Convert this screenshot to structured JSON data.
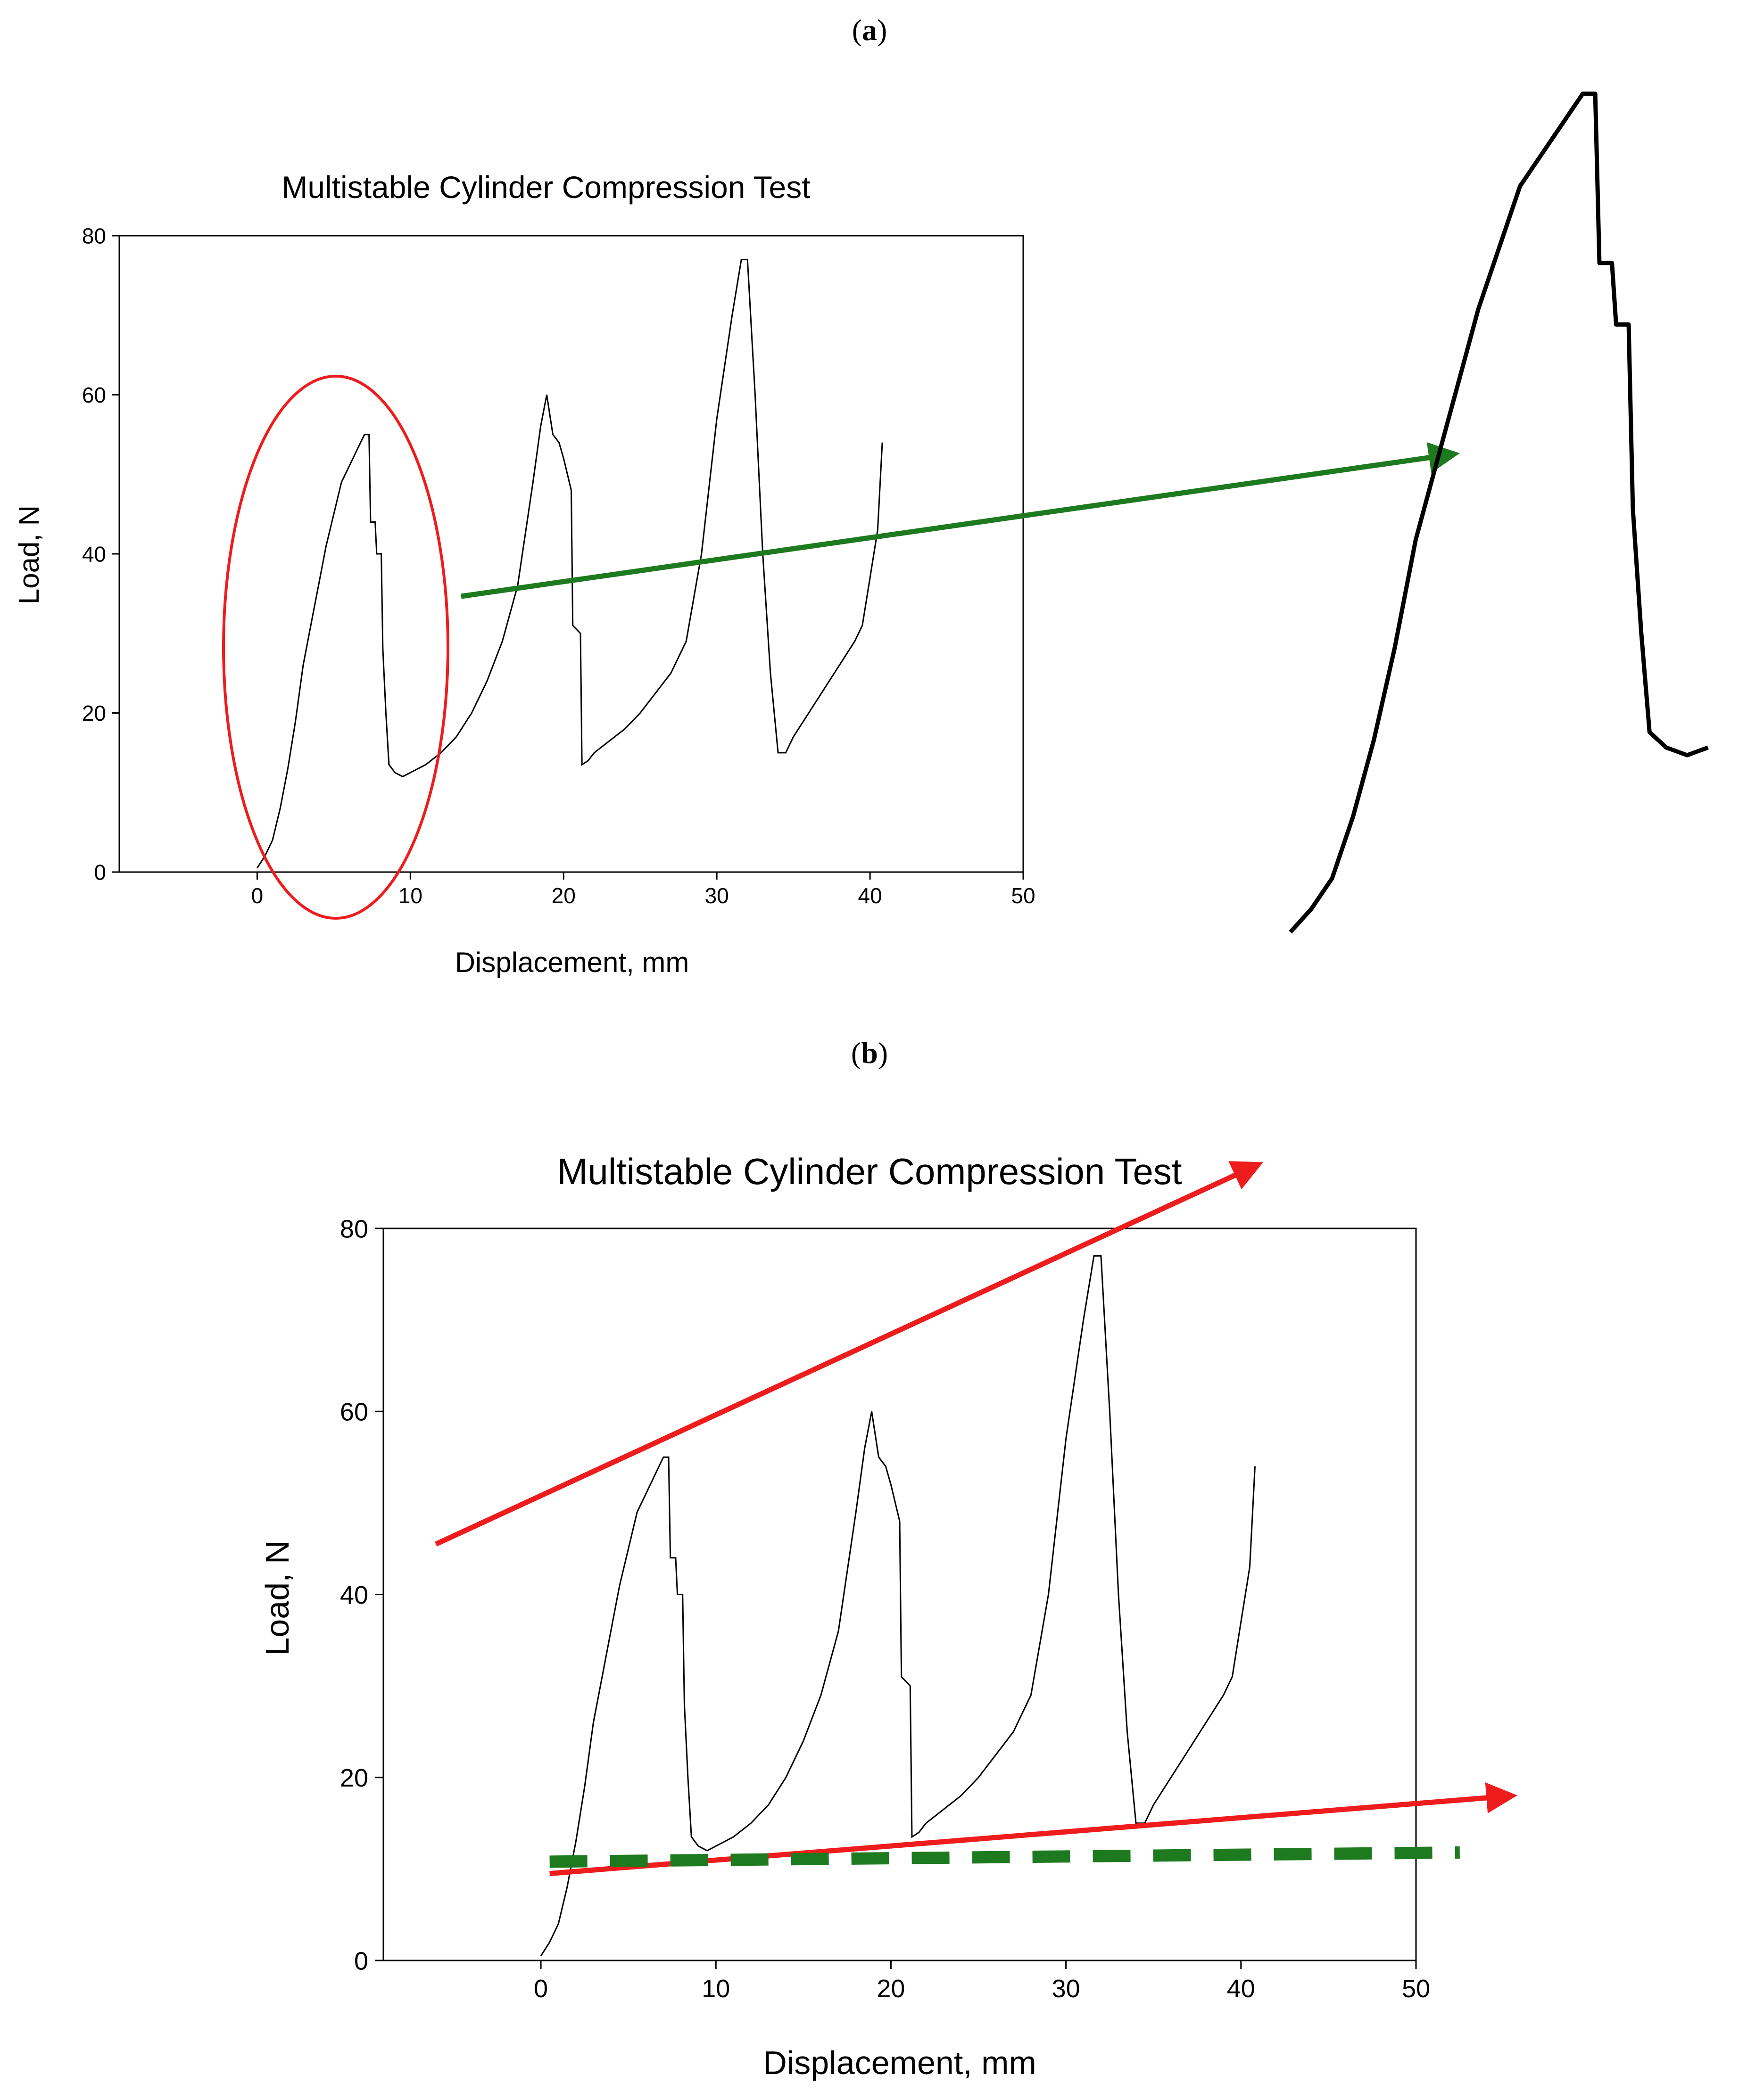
{
  "figure": {
    "panel_a_label": "a",
    "panel_b_label": "b",
    "annotation_colors": {
      "ellipse": "#ee1c1c",
      "green_arrow": "#1e7a1e",
      "trend_arrows": "#ee1c1c",
      "plateau_dash": "#1e7a1e"
    }
  },
  "chart_data": [
    {
      "panel": "a",
      "type": "line",
      "title": "Multistable Cylinder Compression Test",
      "xlabel": "Displacement, mm",
      "ylabel": "Load, N",
      "xlim": [
        -9,
        50
      ],
      "ylim": [
        0,
        80
      ],
      "xticks": [
        0,
        10,
        20,
        30,
        40,
        50
      ],
      "yticks": [
        0,
        20,
        40,
        60,
        80
      ],
      "grid": false,
      "series": [
        {
          "name": "Load",
          "color": "#000000",
          "x": [
            0,
            0.5,
            1,
            1.5,
            2,
            2.5,
            3,
            3.5,
            4,
            4.5,
            5,
            5.5,
            6,
            6.5,
            7,
            7.3,
            7.4,
            7.7,
            7.8,
            8.1,
            8.2,
            8.4,
            8.6,
            9,
            9.5,
            10,
            11,
            12,
            13,
            14,
            15,
            16,
            17,
            18,
            18.5,
            18.9,
            19.3,
            19.7,
            20,
            20.5,
            20.6,
            21.1,
            21.2,
            21.6,
            22,
            23,
            24,
            25,
            26,
            27,
            28,
            29,
            30,
            31,
            31.6,
            32,
            32.5,
            33,
            33.5,
            34,
            34.5,
            35,
            36,
            37,
            38,
            39,
            39.5,
            40,
            40.5,
            40.8
          ],
          "y": [
            0.5,
            2,
            4,
            8,
            13,
            19,
            26,
            31,
            36,
            41,
            45,
            49,
            51,
            53,
            55,
            55,
            44,
            44,
            40,
            40,
            28,
            20,
            13.5,
            12.5,
            12,
            12.5,
            13.5,
            15,
            17,
            20,
            24,
            29,
            36,
            49,
            56,
            60,
            55,
            54,
            52,
            48,
            31,
            30,
            13.5,
            14,
            15,
            16.5,
            18,
            20,
            22.5,
            25,
            29,
            40,
            57,
            70,
            77,
            77,
            60,
            40,
            25,
            15,
            15,
            17,
            20,
            23,
            26,
            29,
            31,
            37,
            43,
            54
          ]
        }
      ],
      "annotations": [
        {
          "type": "ellipse",
          "around": "first peak, displacement 0 to 10 mm"
        },
        {
          "type": "arrow",
          "points_to": "zoomed view of first load peak"
        }
      ]
    },
    {
      "panel": "b",
      "type": "line",
      "title": "Multistable Cylinder Compression Test",
      "xlabel": "Displacement, mm",
      "ylabel": "Load, N",
      "xlim": [
        -9,
        50
      ],
      "ylim": [
        0,
        80
      ],
      "xticks": [
        0,
        10,
        20,
        30,
        40,
        50
      ],
      "yticks": [
        0,
        20,
        40,
        60,
        80
      ],
      "grid": false,
      "series": [
        {
          "name": "Load",
          "color": "#000000",
          "x": [
            0,
            0.5,
            1,
            1.5,
            2,
            2.5,
            3,
            3.5,
            4,
            4.5,
            5,
            5.5,
            6,
            6.5,
            7,
            7.3,
            7.4,
            7.7,
            7.8,
            8.1,
            8.2,
            8.4,
            8.6,
            9,
            9.5,
            10,
            11,
            12,
            13,
            14,
            15,
            16,
            17,
            18,
            18.5,
            18.9,
            19.3,
            19.7,
            20,
            20.5,
            20.6,
            21.1,
            21.2,
            21.6,
            22,
            23,
            24,
            25,
            26,
            27,
            28,
            29,
            30,
            31,
            31.6,
            32,
            32.5,
            33,
            33.5,
            34,
            34.5,
            35,
            36,
            37,
            38,
            39,
            39.5,
            40,
            40.5,
            40.8
          ],
          "y": [
            0.5,
            2,
            4,
            8,
            13,
            19,
            26,
            31,
            36,
            41,
            45,
            49,
            51,
            53,
            55,
            55,
            44,
            44,
            40,
            40,
            28,
            20,
            13.5,
            12.5,
            12,
            12.5,
            13.5,
            15,
            17,
            20,
            24,
            29,
            36,
            49,
            56,
            60,
            55,
            54,
            52,
            48,
            31,
            30,
            13.5,
            14,
            15,
            16.5,
            18,
            20,
            22.5,
            25,
            29,
            40,
            57,
            70,
            77,
            77,
            60,
            40,
            25,
            15,
            15,
            17,
            20,
            23,
            26,
            29,
            31,
            37,
            43,
            54
          ]
        }
      ],
      "annotations": [
        {
          "type": "trend-arrow",
          "from": [
            -6,
            45.5
          ],
          "to": [
            41,
            87
          ],
          "meaning": "increasing peak load"
        },
        {
          "type": "trend-arrow",
          "from": [
            0.5,
            9.5
          ],
          "to": [
            55.5,
            18
          ],
          "meaning": "increasing valley load"
        },
        {
          "type": "dashed-line",
          "from": [
            0.5,
            10.8
          ],
          "to": [
            52.5,
            11.8
          ],
          "meaning": "baseline plateau"
        }
      ]
    }
  ]
}
